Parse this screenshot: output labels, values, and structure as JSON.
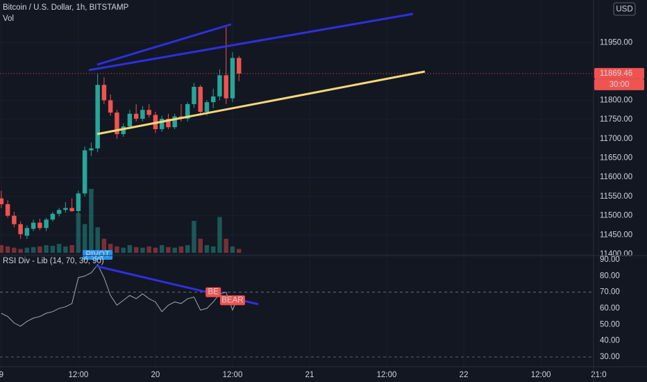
{
  "chart_data": [
    {
      "type": "candlestick",
      "title": "Bitcoin / U.S. Dollar, 1h, BITSTAMP",
      "subtitle": "Vol",
      "currency": "USD",
      "x": [
        0,
        1,
        2,
        3,
        4,
        5,
        6,
        7,
        8,
        9,
        10,
        11,
        12,
        13,
        14,
        15,
        16,
        17,
        18,
        19,
        20,
        21,
        22,
        23,
        24,
        25,
        26,
        27,
        28,
        29,
        30,
        31,
        32,
        33,
        34,
        35,
        36,
        37
      ],
      "open": [
        11545,
        11530,
        11500,
        11478,
        11448,
        11466,
        11482,
        11468,
        11490,
        11505,
        11515,
        11520,
        11512,
        11558,
        11670,
        11675,
        11840,
        11800,
        11768,
        11712,
        11732,
        11765,
        11752,
        11775,
        11762,
        11725,
        11752,
        11730,
        11758,
        11752,
        11790,
        11835,
        11770,
        11795,
        11810,
        11865,
        11805,
        11910
      ],
      "high": [
        11565,
        11540,
        11510,
        11485,
        11475,
        11490,
        11492,
        11495,
        11510,
        11520,
        11535,
        11545,
        11565,
        11680,
        11690,
        11870,
        11860,
        11815,
        11775,
        11740,
        11775,
        11790,
        11785,
        11790,
        11770,
        11760,
        11765,
        11765,
        11790,
        11795,
        11845,
        11840,
        11800,
        11830,
        11880,
        11990,
        11925,
        11915
      ],
      "low": [
        11520,
        11495,
        11470,
        11440,
        11440,
        11460,
        11462,
        11460,
        11485,
        11498,
        11508,
        11510,
        11505,
        11550,
        11655,
        11665,
        11790,
        11760,
        11700,
        11705,
        11725,
        11745,
        11745,
        11755,
        11715,
        11718,
        11725,
        11725,
        11745,
        11745,
        11780,
        11760,
        11760,
        11780,
        11800,
        11790,
        11795,
        11850
      ],
      "close": [
        11530,
        11500,
        11478,
        11452,
        11468,
        11482,
        11468,
        11490,
        11505,
        11515,
        11520,
        11512,
        11558,
        11670,
        11675,
        11840,
        11800,
        11768,
        11712,
        11732,
        11765,
        11752,
        11775,
        11762,
        11725,
        11752,
        11730,
        11758,
        11752,
        11790,
        11835,
        11770,
        11795,
        11810,
        11865,
        11805,
        11910,
        11869.46
      ],
      "volume": [
        12,
        10,
        8,
        6,
        8,
        9,
        10,
        12,
        11,
        14,
        10,
        12,
        62,
        45,
        100,
        40,
        22,
        14,
        10,
        8,
        12,
        9,
        8,
        10,
        8,
        12,
        9,
        8,
        10,
        12,
        50,
        22,
        12,
        10,
        56,
        22,
        10,
        6
      ],
      "volume_ylim": [
        0,
        400
      ],
      "up_color": "#26a69a",
      "down_color": "#ef5350",
      "last_price": 11869.46,
      "countdown": "30:00",
      "xlim": [
        -0.2,
        92.2
      ],
      "ylim": [
        11396.4,
        12060.6
      ],
      "xticks": [
        {
          "value": 0,
          "label": "9"
        },
        {
          "value": 12,
          "label": "12:00"
        },
        {
          "value": 24,
          "label": "20"
        },
        {
          "value": 36,
          "label": "12:00"
        },
        {
          "value": 48,
          "label": "21"
        },
        {
          "value": 60,
          "label": "12:00"
        },
        {
          "value": 72,
          "label": "22"
        },
        {
          "value": 84,
          "label": "12:00"
        },
        {
          "value": 93,
          "label": "21:0"
        }
      ],
      "yticks": [
        {
          "value": 11400,
          "label": "11400.00"
        },
        {
          "value": 11450,
          "label": "11450.00"
        },
        {
          "value": 11500,
          "label": "11500.00"
        },
        {
          "value": 11550,
          "label": "11550.00"
        },
        {
          "value": 11600,
          "label": "11600.00"
        },
        {
          "value": 11650,
          "label": "11650.00"
        },
        {
          "value": 11700,
          "label": "11700.00"
        },
        {
          "value": 11750,
          "label": "11750.00"
        },
        {
          "value": 11800,
          "label": "11800.00"
        },
        {
          "value": 11950,
          "label": "11950.00"
        }
      ],
      "grid": true
    },
    {
      "type": "line",
      "title": "RSI Div - Lib (14, 70, 30, 90)",
      "x": [
        0,
        1,
        2,
        3,
        4,
        5,
        6,
        7,
        8,
        9,
        10,
        11,
        12,
        13,
        14,
        15,
        16,
        17,
        18,
        19,
        20,
        21,
        22,
        23,
        24,
        25,
        26,
        27,
        28,
        29,
        30,
        31,
        32,
        33,
        34,
        35,
        36,
        37
      ],
      "values": [
        57,
        55,
        51,
        49,
        52,
        54,
        55,
        57,
        58,
        60,
        61,
        63,
        79,
        80,
        82,
        87,
        79,
        68,
        62,
        65,
        68,
        66,
        69,
        66,
        64,
        58,
        62,
        64,
        63,
        66,
        67,
        59,
        60,
        64,
        69,
        70,
        59,
        68
      ],
      "color": "#a3a6af",
      "xlim": [
        -0.2,
        92.2
      ],
      "ylim": [
        24,
        92.6
      ],
      "yticks": [
        {
          "value": 30,
          "label": "30.00"
        },
        {
          "value": 40,
          "label": "40.00"
        },
        {
          "value": 50,
          "label": "50.00"
        },
        {
          "value": 60,
          "label": "60.00"
        },
        {
          "value": 70,
          "label": "70.00"
        },
        {
          "value": 80,
          "label": "80.00"
        },
        {
          "value": 90,
          "label": "90.00"
        }
      ],
      "dashed_levels": [
        70,
        30
      ],
      "annotations": [
        {
          "text": "PIVOT",
          "x": 15,
          "color": "#2196f3"
        },
        {
          "text": "BE",
          "x": 33,
          "color": "#ef5350"
        },
        {
          "text": "BEAR",
          "x": 36,
          "color": "#ef5350"
        }
      ]
    }
  ]
}
